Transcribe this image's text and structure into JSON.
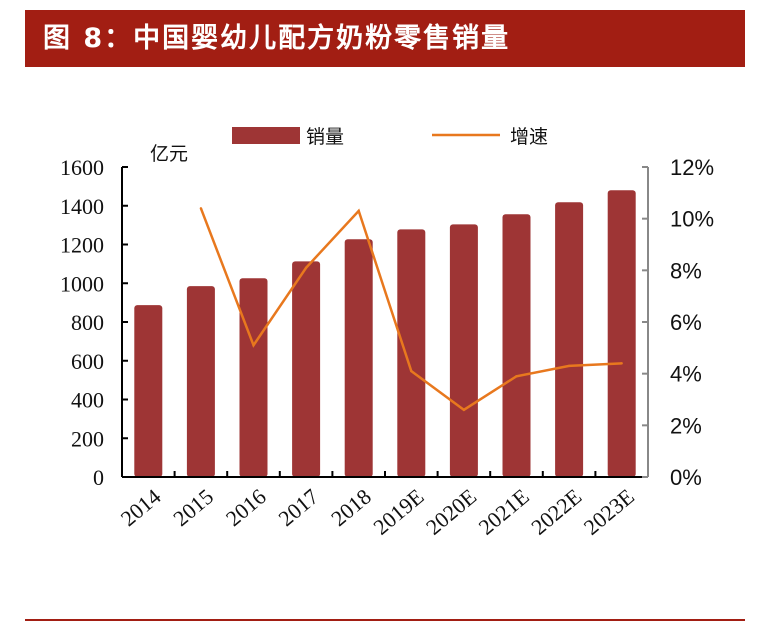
{
  "title": "图 8：中国婴幼儿配方奶粉零售销量",
  "chart_data": {
    "type": "bar+line",
    "categories": [
      "2014",
      "2015",
      "2016",
      "2017",
      "2018",
      "2019E",
      "2020E",
      "2021E",
      "2022E",
      "2023E"
    ],
    "series": [
      {
        "name": "销量",
        "type": "bar",
        "axis": "left",
        "color": "#9e3535",
        "values": [
          887,
          985,
          1026,
          1113,
          1227,
          1278,
          1304,
          1356,
          1418,
          1480
        ]
      },
      {
        "name": "增速",
        "type": "line",
        "axis": "right",
        "color": "#e8781e",
        "values": [
          null,
          10.4,
          5.1,
          8.1,
          10.3,
          4.1,
          2.6,
          3.9,
          4.3,
          4.4
        ]
      }
    ],
    "ylabel_left": "亿元",
    "ylim_left": [
      0,
      1600
    ],
    "yticks_left": [
      "0",
      "200",
      "400",
      "600",
      "800",
      "1000",
      "1200",
      "1400",
      "1600"
    ],
    "ylim_right": [
      0,
      12
    ],
    "yticks_right": [
      "0%",
      "2%",
      "4%",
      "6%",
      "8%",
      "10%",
      "12%"
    ],
    "grid": false,
    "legend": "top"
  }
}
